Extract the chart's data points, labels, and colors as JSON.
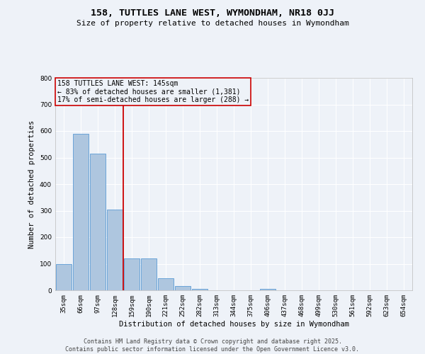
{
  "title": "158, TUTTLES LANE WEST, WYMONDHAM, NR18 0JJ",
  "subtitle": "Size of property relative to detached houses in Wymondham",
  "xlabel": "Distribution of detached houses by size in Wymondham",
  "ylabel": "Number of detached properties",
  "categories": [
    "35sqm",
    "66sqm",
    "97sqm",
    "128sqm",
    "159sqm",
    "190sqm",
    "221sqm",
    "252sqm",
    "282sqm",
    "313sqm",
    "344sqm",
    "375sqm",
    "406sqm",
    "437sqm",
    "468sqm",
    "499sqm",
    "530sqm",
    "561sqm",
    "592sqm",
    "623sqm",
    "654sqm"
  ],
  "values": [
    100,
    590,
    515,
    305,
    120,
    120,
    45,
    15,
    5,
    0,
    0,
    0,
    5,
    0,
    0,
    0,
    0,
    0,
    0,
    0,
    0
  ],
  "bar_color": "#aec6df",
  "bar_edge_color": "#5b9bd5",
  "vline_color": "#cc0000",
  "vline_x_index": 3.5,
  "annotation_lines": [
    "158 TUTTLES LANE WEST: 145sqm",
    "← 83% of detached houses are smaller (1,381)",
    "17% of semi-detached houses are larger (288) →"
  ],
  "annotation_box_color": "#cc0000",
  "ylim": [
    0,
    800
  ],
  "yticks": [
    0,
    100,
    200,
    300,
    400,
    500,
    600,
    700,
    800
  ],
  "background_color": "#eef2f8",
  "grid_color": "#ffffff",
  "footer": "Contains HM Land Registry data © Crown copyright and database right 2025.\nContains public sector information licensed under the Open Government Licence v3.0.",
  "title_fontsize": 9.5,
  "subtitle_fontsize": 8,
  "axis_label_fontsize": 7.5,
  "tick_fontsize": 6.5,
  "annotation_fontsize": 7,
  "footer_fontsize": 6
}
